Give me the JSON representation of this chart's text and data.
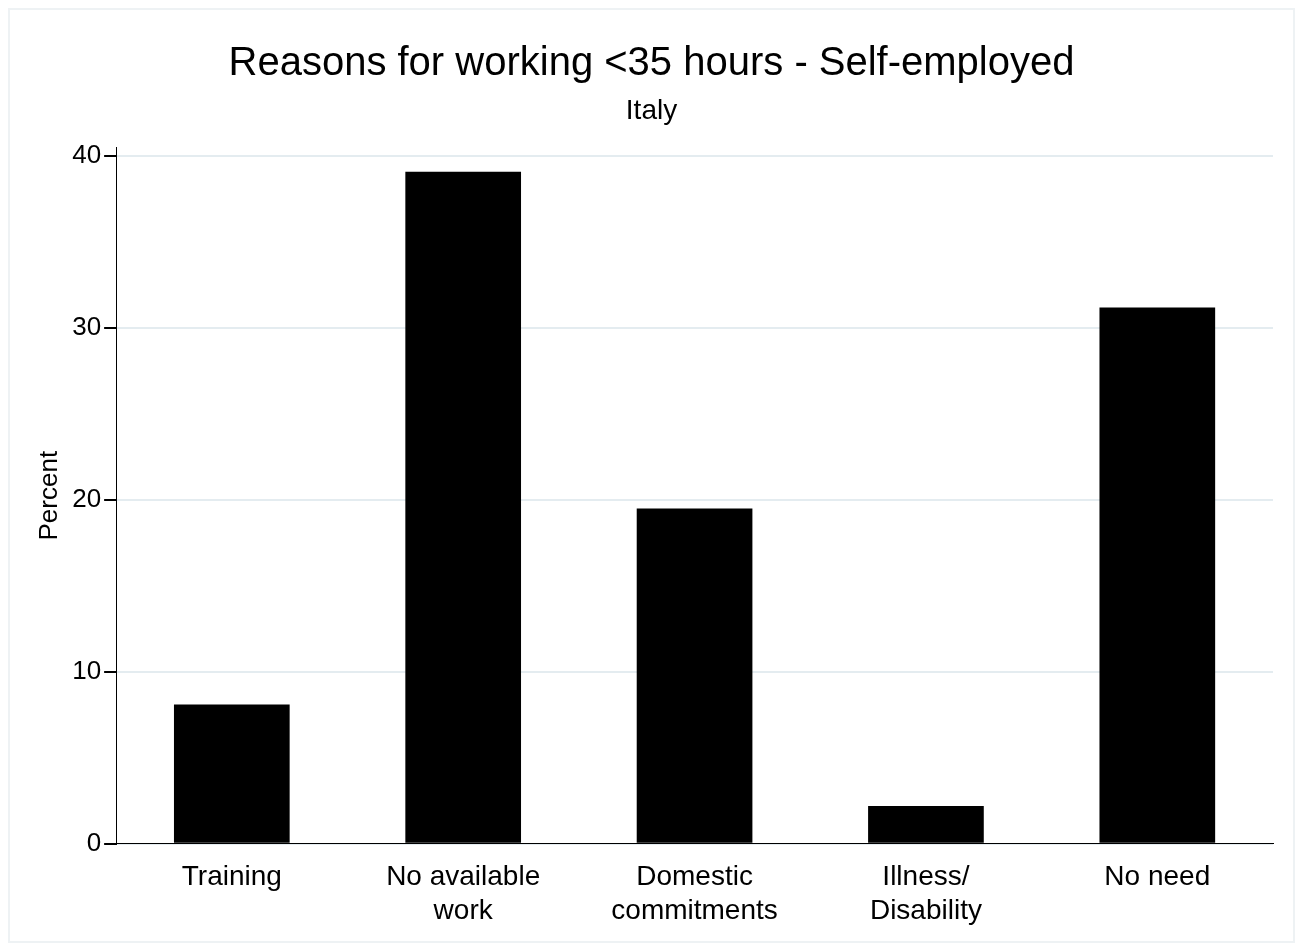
{
  "chart_data": {
    "type": "bar",
    "title": "Reasons for working <35 hours - Self-employed",
    "subtitle": "Italy",
    "ylabel": "Percent",
    "categories": [
      "Training",
      "No available work",
      "Domestic commitments",
      "Illness/Disability",
      "No need"
    ],
    "values": [
      8.1,
      39.1,
      19.5,
      2.2,
      31.2
    ],
    "color": "#000000",
    "ylim": [
      0,
      40.5
    ],
    "yticks": [
      0,
      10,
      20,
      30,
      40
    ],
    "grid": "y",
    "legend": false
  }
}
